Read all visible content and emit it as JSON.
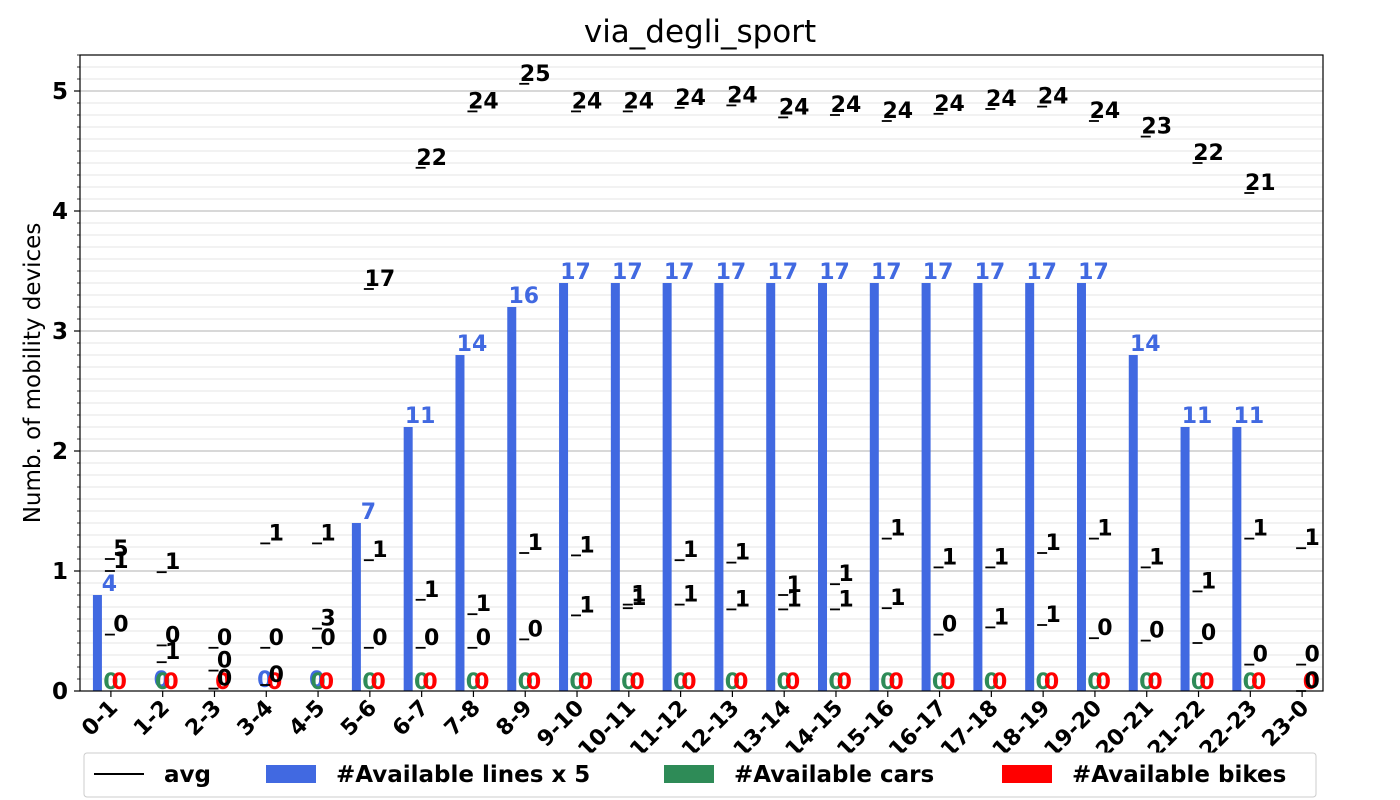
{
  "chart_data": {
    "type": "bar",
    "title": "via_degli_sport",
    "ylabel": "Numb. of mobility devices",
    "xlabel": "",
    "ylim": [
      0,
      5.3
    ],
    "yticks": [
      0,
      1,
      2,
      3,
      4,
      5
    ],
    "grid": "horizontal major and minor",
    "legend_position": "bottom",
    "categories": [
      "0-1",
      "1-2",
      "2-3",
      "3-4",
      "4-5",
      "5-6",
      "6-7",
      "7-8",
      "8-9",
      "9-10",
      "10-11",
      "11-12",
      "12-13",
      "13-14",
      "14-15",
      "15-16",
      "16-17",
      "17-18",
      "18-19",
      "19-20",
      "20-21",
      "21-22",
      "22-23",
      "23-0"
    ],
    "series": [
      {
        "name": "#Available lines x 5",
        "color": "#4169E1",
        "values": [
          0.8,
          0,
          0,
          0,
          0,
          1.4,
          2.2,
          2.8,
          3.2,
          3.4,
          3.4,
          3.4,
          3.4,
          3.4,
          3.4,
          3.4,
          3.4,
          3.4,
          3.4,
          3.4,
          2.8,
          2.2,
          2.2,
          0
        ],
        "labels": [
          "4",
          "0",
          "",
          "0",
          "0",
          "7",
          "11",
          "14",
          "16",
          "17",
          "17",
          "17",
          "17",
          "17",
          "17",
          "17",
          "17",
          "17",
          "17",
          "17",
          "14",
          "11",
          "11",
          ""
        ]
      },
      {
        "name": "#Available cars",
        "color": "#2E8B57",
        "values": [
          0,
          0,
          0,
          0,
          0,
          0,
          0,
          0,
          0,
          0,
          0,
          0,
          0,
          0,
          0,
          0,
          0,
          0,
          0,
          0,
          0,
          0,
          0,
          0
        ],
        "labels": [
          "0",
          "0",
          "",
          "",
          "0",
          "0",
          "0",
          "0",
          "0",
          "0",
          "0",
          "0",
          "0",
          "0",
          "0",
          "0",
          "0",
          "0",
          "0",
          "0",
          "0",
          "0",
          "0",
          ""
        ]
      },
      {
        "name": "#Available bikes",
        "color": "#FF0000",
        "values": [
          0,
          0,
          0,
          0,
          0,
          0,
          0,
          0,
          0,
          0,
          0,
          0,
          0,
          0,
          0,
          0,
          0,
          0,
          0,
          0,
          0,
          0,
          0,
          0
        ],
        "labels": [
          "0",
          "0",
          "0",
          "0",
          "0",
          "0",
          "0",
          "0",
          "0",
          "0",
          "0",
          "0",
          "0",
          "0",
          "0",
          "0",
          "0",
          "0",
          "0",
          "0",
          "0",
          "0",
          "0",
          "0"
        ]
      }
    ],
    "avg_marks": {
      "name": "avg",
      "color": "#000000",
      "labels": [
        {
          "category": "0-1",
          "y": 1.1,
          "text": "5"
        },
        {
          "category": "0-1",
          "y": 1.0,
          "text": "1"
        },
        {
          "category": "0-1",
          "y": 0.47,
          "text": "0"
        },
        {
          "category": "1-2",
          "y": 0.99,
          "text": "1"
        },
        {
          "category": "1-2",
          "y": 0.38,
          "text": "0"
        },
        {
          "category": "1-2",
          "y": 0.24,
          "text": "1"
        },
        {
          "category": "2-3",
          "y": 0.36,
          "text": "0"
        },
        {
          "category": "2-3",
          "y": 0.17,
          "text": "0"
        },
        {
          "category": "2-3",
          "y": 0.02,
          "text": "0"
        },
        {
          "category": "3-4",
          "y": 1.23,
          "text": "1"
        },
        {
          "category": "3-4",
          "y": 0.36,
          "text": "0"
        },
        {
          "category": "3-4",
          "y": 0.05,
          "text": "0"
        },
        {
          "category": "4-5",
          "y": 1.23,
          "text": "1"
        },
        {
          "category": "4-5",
          "y": 0.52,
          "text": "3"
        },
        {
          "category": "4-5",
          "y": 0.36,
          "text": "0"
        },
        {
          "category": "5-6",
          "y": 3.35,
          "text": "17"
        },
        {
          "category": "5-6",
          "y": 1.09,
          "text": "1"
        },
        {
          "category": "5-6",
          "y": 0.36,
          "text": "0"
        },
        {
          "category": "6-7",
          "y": 4.36,
          "text": "22"
        },
        {
          "category": "6-7",
          "y": 0.76,
          "text": "1"
        },
        {
          "category": "6-7",
          "y": 0.36,
          "text": "0"
        },
        {
          "category": "7-8",
          "y": 4.83,
          "text": "24"
        },
        {
          "category": "7-8",
          "y": 0.64,
          "text": "1"
        },
        {
          "category": "7-8",
          "y": 0.36,
          "text": "0"
        },
        {
          "category": "8-9",
          "y": 5.06,
          "text": "25"
        },
        {
          "category": "8-9",
          "y": 1.15,
          "text": "1"
        },
        {
          "category": "8-9",
          "y": 0.43,
          "text": "0"
        },
        {
          "category": "9-10",
          "y": 4.83,
          "text": "24"
        },
        {
          "category": "9-10",
          "y": 1.13,
          "text": "1"
        },
        {
          "category": "9-10",
          "y": 0.63,
          "text": "1"
        },
        {
          "category": "10-11",
          "y": 4.83,
          "text": "24"
        },
        {
          "category": "10-11",
          "y": 0.72,
          "text": "1"
        },
        {
          "category": "10-11",
          "y": 0.69,
          "text": "1"
        },
        {
          "category": "11-12",
          "y": 4.86,
          "text": "24"
        },
        {
          "category": "11-12",
          "y": 1.09,
          "text": "1"
        },
        {
          "category": "11-12",
          "y": 0.72,
          "text": "1"
        },
        {
          "category": "12-13",
          "y": 4.88,
          "text": "24"
        },
        {
          "category": "12-13",
          "y": 1.07,
          "text": "1"
        },
        {
          "category": "12-13",
          "y": 0.68,
          "text": "1"
        },
        {
          "category": "13-14",
          "y": 4.78,
          "text": "24"
        },
        {
          "category": "13-14",
          "y": 0.8,
          "text": "1"
        },
        {
          "category": "13-14",
          "y": 0.68,
          "text": "1"
        },
        {
          "category": "14-15",
          "y": 4.8,
          "text": "24"
        },
        {
          "category": "14-15",
          "y": 0.89,
          "text": "1"
        },
        {
          "category": "14-15",
          "y": 0.68,
          "text": "1"
        },
        {
          "category": "15-16",
          "y": 4.75,
          "text": "24"
        },
        {
          "category": "15-16",
          "y": 1.27,
          "text": "1"
        },
        {
          "category": "15-16",
          "y": 0.69,
          "text": "1"
        },
        {
          "category": "16-17",
          "y": 4.81,
          "text": "24"
        },
        {
          "category": "16-17",
          "y": 1.03,
          "text": "1"
        },
        {
          "category": "16-17",
          "y": 0.47,
          "text": "0"
        },
        {
          "category": "17-18",
          "y": 4.85,
          "text": "24"
        },
        {
          "category": "17-18",
          "y": 1.03,
          "text": "1"
        },
        {
          "category": "17-18",
          "y": 0.53,
          "text": "1"
        },
        {
          "category": "18-19",
          "y": 4.87,
          "text": "24"
        },
        {
          "category": "18-19",
          "y": 1.15,
          "text": "1"
        },
        {
          "category": "18-19",
          "y": 0.55,
          "text": "1"
        },
        {
          "category": "19-20",
          "y": 4.75,
          "text": "24"
        },
        {
          "category": "19-20",
          "y": 1.27,
          "text": "1"
        },
        {
          "category": "19-20",
          "y": 0.44,
          "text": "0"
        },
        {
          "category": "20-21",
          "y": 4.62,
          "text": "23"
        },
        {
          "category": "20-21",
          "y": 1.03,
          "text": "1"
        },
        {
          "category": "20-21",
          "y": 0.42,
          "text": "0"
        },
        {
          "category": "21-22",
          "y": 4.4,
          "text": "22"
        },
        {
          "category": "21-22",
          "y": 0.83,
          "text": "1"
        },
        {
          "category": "21-22",
          "y": 0.4,
          "text": "0"
        },
        {
          "category": "22-23",
          "y": 4.15,
          "text": "21"
        },
        {
          "category": "22-23",
          "y": 1.27,
          "text": "1"
        },
        {
          "category": "22-23",
          "y": 0.22,
          "text": "0"
        },
        {
          "category": "23-0",
          "y": 1.19,
          "text": "1"
        },
        {
          "category": "23-0",
          "y": 0.22,
          "text": "0"
        },
        {
          "category": "23-0",
          "y": 0.0,
          "text": "0"
        }
      ]
    }
  }
}
